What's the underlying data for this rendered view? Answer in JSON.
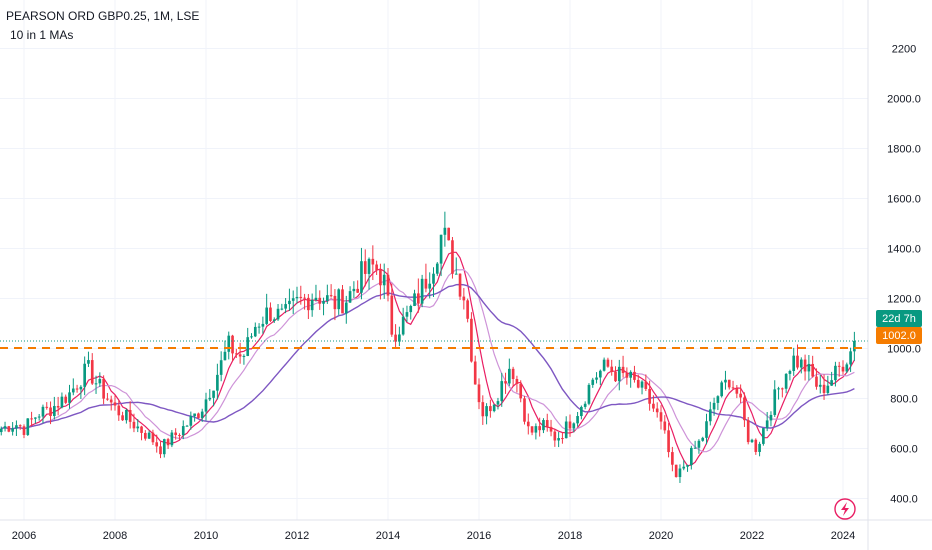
{
  "header": {
    "title": "PEARSON ORD GBP0.25, 1M, LSE",
    "indicator": "10 in 1 MAs"
  },
  "badges": {
    "countdown": "22d 7h",
    "price_level": "1002.0"
  },
  "colors": {
    "bull": "#089981",
    "bear": "#f23645",
    "countdown_bg": "#089981",
    "level_line": "#f57c00",
    "ma_fast": "#e91e63",
    "ma_mid": "#ce93d8",
    "ma_slow": "#7e57c2"
  },
  "icons": {
    "bottom_right": "lightning-icon"
  },
  "chart_data": {
    "type": "candlestick",
    "title": "PEARSON ORD GBP0.25, 1M, LSE",
    "x_ticks": [
      "2006",
      "2008",
      "2010",
      "2012",
      "2014",
      "2016",
      "2018",
      "2020",
      "2022",
      "2024"
    ],
    "y_ticks": [
      "400.0",
      "600.0",
      "800.0",
      "1000.0",
      "1200.0",
      "1400.0",
      "1600.0",
      "1800.0",
      "2000.0",
      "2200"
    ],
    "ylim": [
      300,
      2300
    ],
    "xlim": [
      2005.5,
      2025.0
    ],
    "horizontal_level": 1002.0,
    "last_price": 1030,
    "price_path": [
      [
        2005.5,
        680
      ],
      [
        2005.8,
        700
      ],
      [
        2006.0,
        680
      ],
      [
        2006.3,
        740
      ],
      [
        2006.6,
        760
      ],
      [
        2007.0,
        820
      ],
      [
        2007.4,
        920
      ],
      [
        2007.6,
        860
      ],
      [
        2008.0,
        760
      ],
      [
        2008.4,
        700
      ],
      [
        2008.8,
        640
      ],
      [
        2009.0,
        600
      ],
      [
        2009.3,
        650
      ],
      [
        2009.6,
        700
      ],
      [
        2009.9,
        760
      ],
      [
        2010.2,
        880
      ],
      [
        2010.5,
        1010
      ],
      [
        2010.8,
        960
      ],
      [
        2011.1,
        1100
      ],
      [
        2011.4,
        1150
      ],
      [
        2011.7,
        1120
      ],
      [
        2012.0,
        1180
      ],
      [
        2012.4,
        1220
      ],
      [
        2012.8,
        1180
      ],
      [
        2013.1,
        1200
      ],
      [
        2013.4,
        1290
      ],
      [
        2013.7,
        1330
      ],
      [
        2013.9,
        1280
      ],
      [
        2014.1,
        1060
      ],
      [
        2014.4,
        1120
      ],
      [
        2014.7,
        1220
      ],
      [
        2015.0,
        1350
      ],
      [
        2015.2,
        1470
      ],
      [
        2015.4,
        1350
      ],
      [
        2015.7,
        1200
      ],
      [
        2015.9,
        880
      ],
      [
        2016.1,
        730
      ],
      [
        2016.4,
        820
      ],
      [
        2016.7,
        940
      ],
      [
        2016.9,
        820
      ],
      [
        2017.1,
        660
      ],
      [
        2017.4,
        690
      ],
      [
        2017.7,
        640
      ],
      [
        2017.9,
        680
      ],
      [
        2018.2,
        760
      ],
      [
        2018.5,
        880
      ],
      [
        2018.8,
        930
      ],
      [
        2019.0,
        900
      ],
      [
        2019.3,
        880
      ],
      [
        2019.6,
        830
      ],
      [
        2019.9,
        740
      ],
      [
        2020.1,
        640
      ],
      [
        2020.3,
        470
      ],
      [
        2020.6,
        560
      ],
      [
        2020.9,
        640
      ],
      [
        2021.2,
        800
      ],
      [
        2021.5,
        880
      ],
      [
        2021.7,
        810
      ],
      [
        2021.9,
        650
      ],
      [
        2022.1,
        600
      ],
      [
        2022.4,
        760
      ],
      [
        2022.7,
        890
      ],
      [
        2022.9,
        960
      ],
      [
        2023.2,
        920
      ],
      [
        2023.5,
        830
      ],
      [
        2023.8,
        890
      ],
      [
        2024.1,
        970
      ],
      [
        2024.3,
        1030
      ]
    ]
  }
}
